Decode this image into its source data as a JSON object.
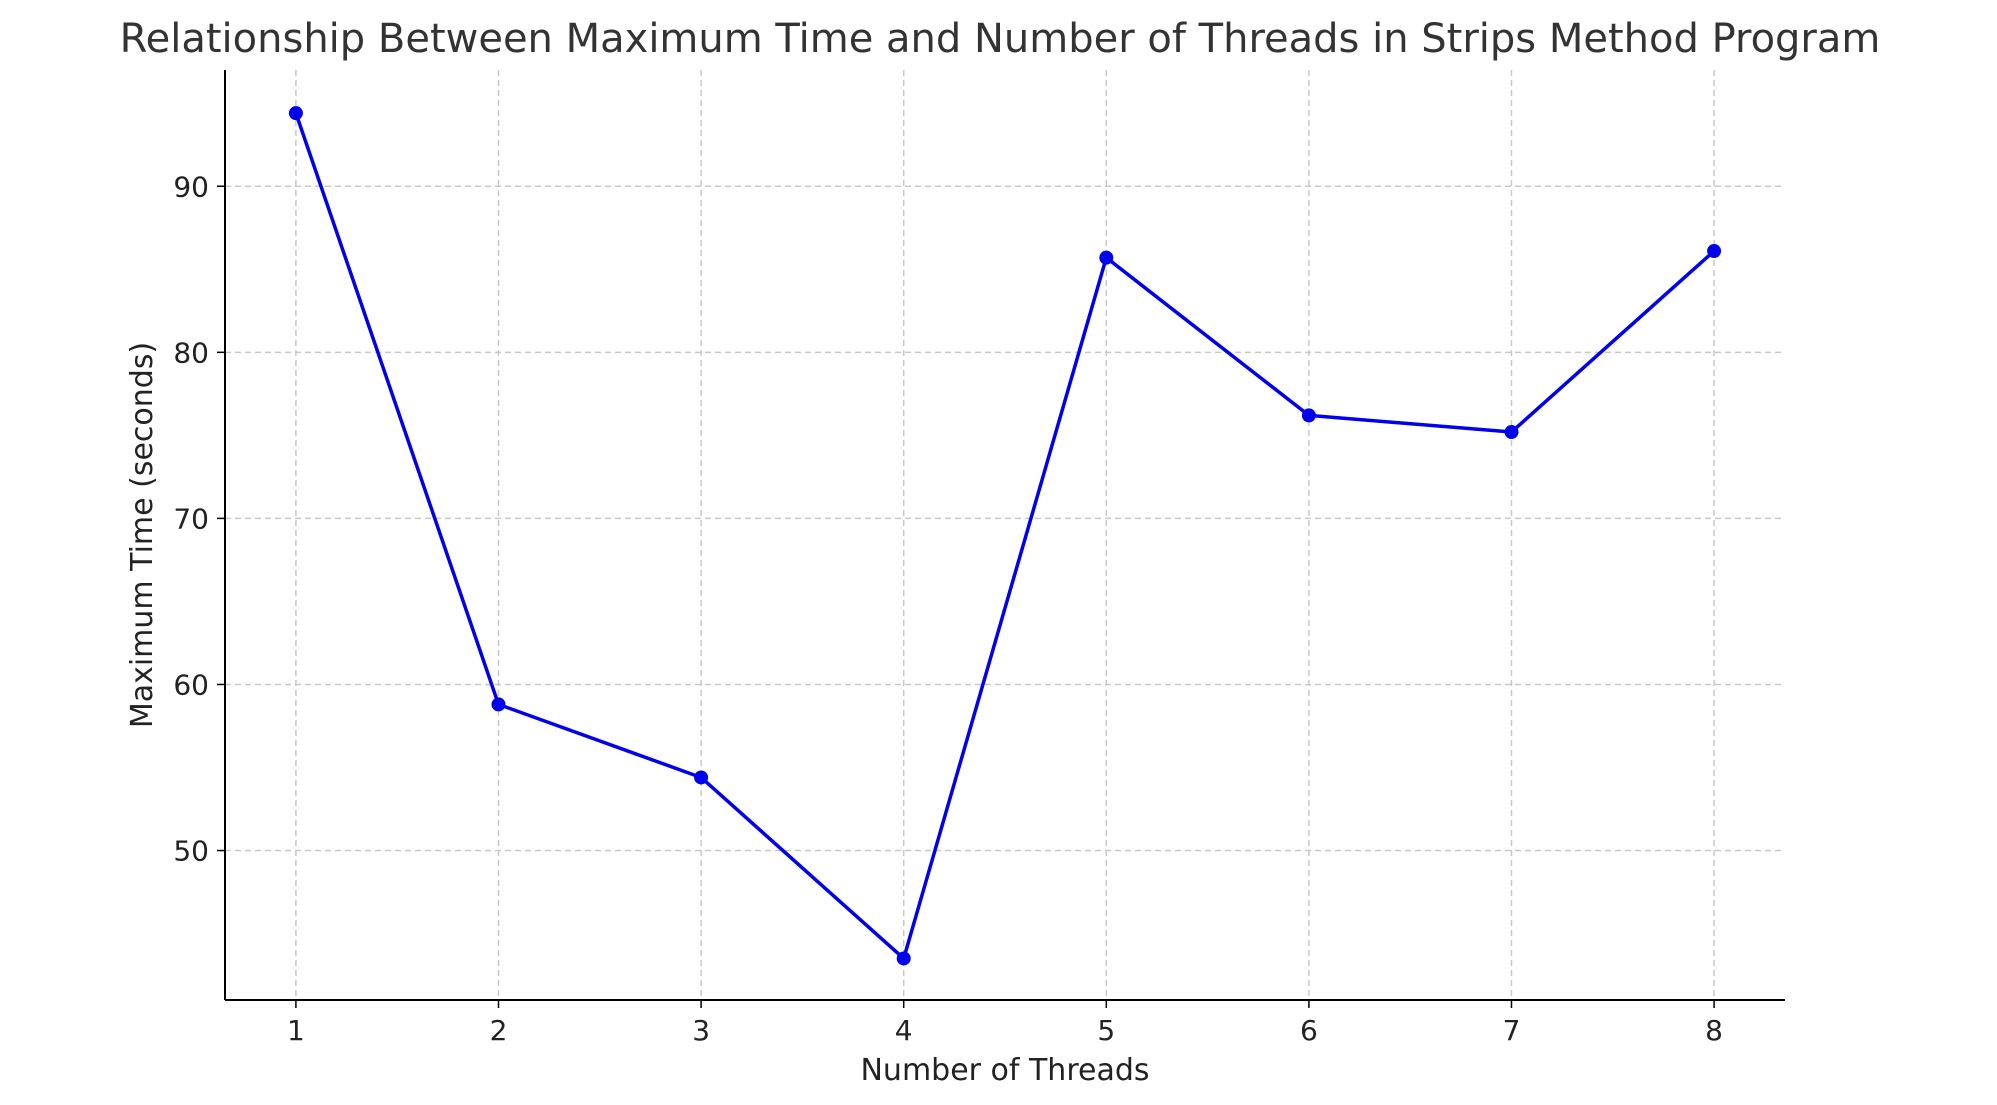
{
  "chart_data": {
    "type": "line",
    "title": "Relationship Between Maximum Time and Number of Threads in Strips Method Program",
    "xlabel": "Number of Threads",
    "ylabel": "Maximum Time (seconds)",
    "x": [
      1,
      2,
      3,
      4,
      5,
      6,
      7,
      8
    ],
    "series": [
      {
        "values": [
          94.4,
          58.8,
          54.4,
          43.5,
          85.7,
          76.2,
          75.2,
          86.1
        ],
        "color": "#0000ee",
        "marker": "circle"
      }
    ],
    "xticks": [
      1,
      2,
      3,
      4,
      5,
      6,
      7,
      8
    ],
    "yticks": [
      50,
      60,
      70,
      80,
      90
    ],
    "xlim": [
      0.65,
      8.35
    ],
    "ylim": [
      41.0,
      97.0
    ],
    "grid": true,
    "legend": false
  }
}
